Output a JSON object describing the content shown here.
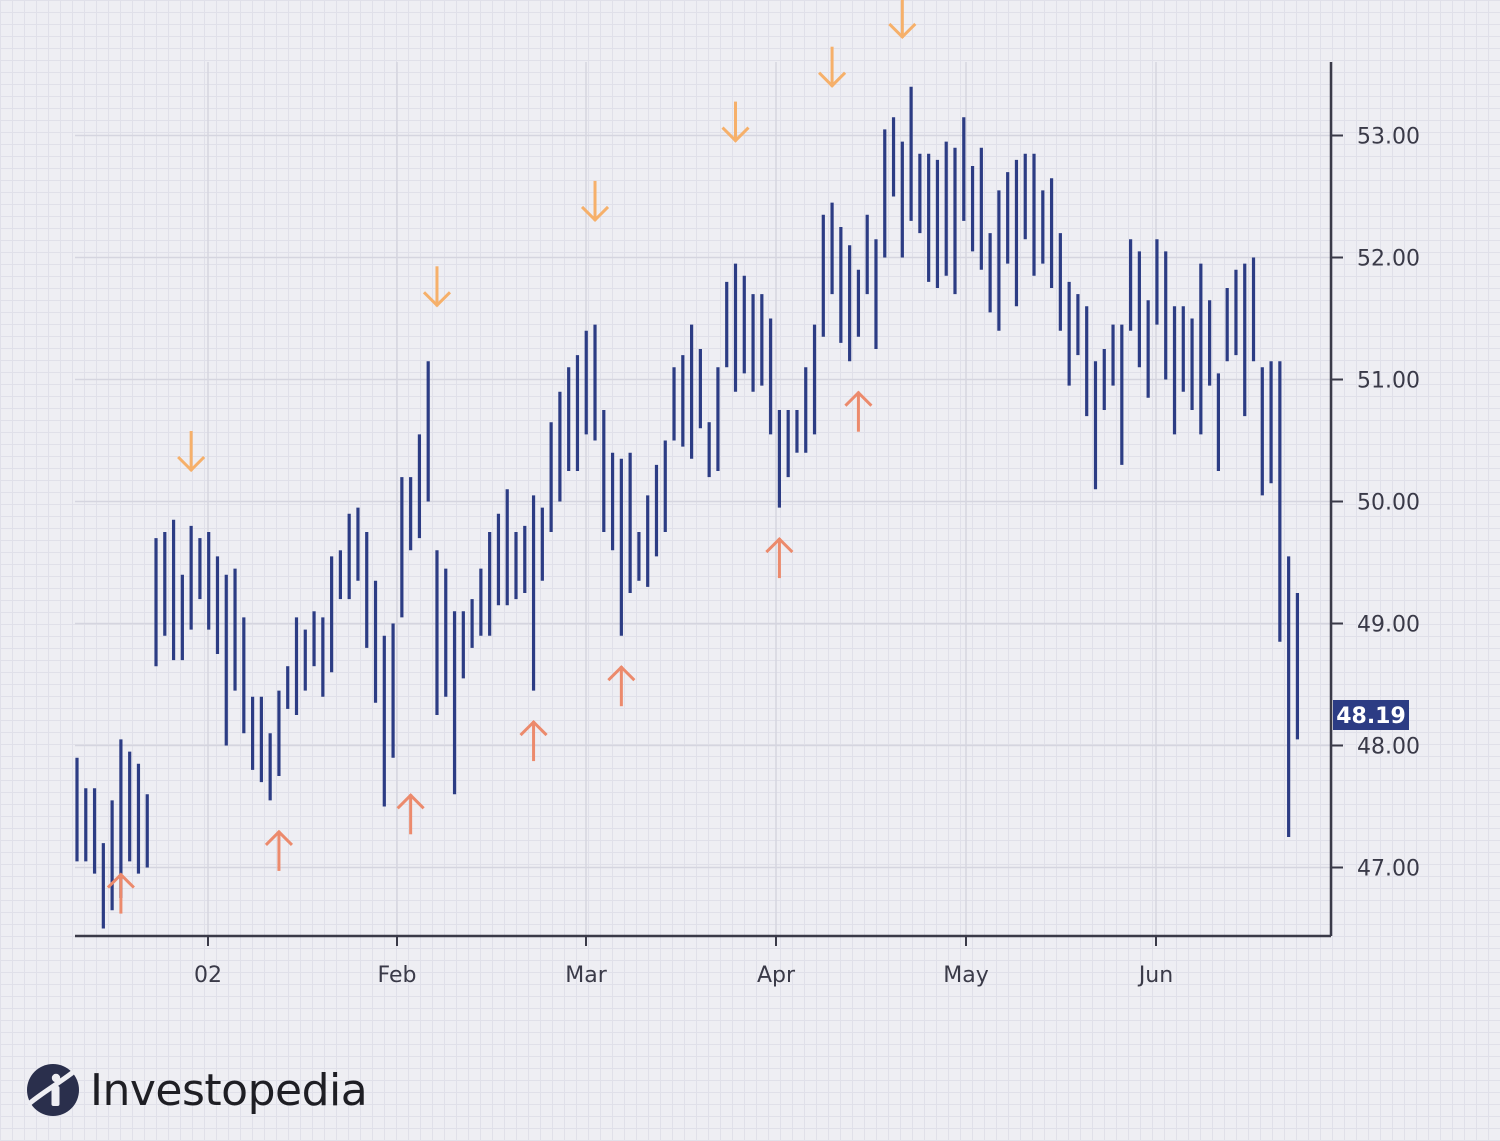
{
  "brand": {
    "name": "Investopedia",
    "logo_icon": "investopedia-logo-icon"
  },
  "colors": {
    "bar": "#2c3c84",
    "buy_arrow": "#ec8a6c",
    "sell_arrow": "#f6b06a",
    "price_tag_bg": "#2c3c84",
    "axis": "#3a3a48"
  },
  "chart_data": {
    "type": "ohlc-bar",
    "title": "",
    "xlabel": "",
    "ylabel": "",
    "ylim": [
      46.45,
      53.6
    ],
    "y_ticks": [
      "47.00",
      "48.00",
      "49.00",
      "50.00",
      "51.00",
      "52.00",
      "53.00"
    ],
    "x_ticks": [
      "02",
      "Feb",
      "Mar",
      "Apr",
      "May",
      "Jun"
    ],
    "last_price": "48.19",
    "grid": true,
    "y_axis_position": "right",
    "bars": [
      {
        "hi": 47.9,
        "lo": 47.05
      },
      {
        "hi": 47.65,
        "lo": 47.05
      },
      {
        "hi": 47.65,
        "lo": 46.95
      },
      {
        "hi": 47.2,
        "lo": 46.5
      },
      {
        "hi": 47.55,
        "lo": 46.65
      },
      {
        "hi": 48.05,
        "lo": 46.75
      },
      {
        "hi": 47.95,
        "lo": 47.05
      },
      {
        "hi": 47.85,
        "lo": 46.95
      },
      {
        "hi": 47.6,
        "lo": 47.0
      },
      {
        "hi": 49.7,
        "lo": 48.65
      },
      {
        "hi": 49.75,
        "lo": 48.9
      },
      {
        "hi": 49.85,
        "lo": 48.7
      },
      {
        "hi": 49.4,
        "lo": 48.7
      },
      {
        "hi": 49.8,
        "lo": 48.95
      },
      {
        "hi": 49.7,
        "lo": 49.2
      },
      {
        "hi": 49.75,
        "lo": 48.95
      },
      {
        "hi": 49.55,
        "lo": 48.75
      },
      {
        "hi": 49.4,
        "lo": 48.0
      },
      {
        "hi": 49.45,
        "lo": 48.45
      },
      {
        "hi": 49.05,
        "lo": 48.1
      },
      {
        "hi": 48.4,
        "lo": 47.8
      },
      {
        "hi": 48.4,
        "lo": 47.7
      },
      {
        "hi": 48.1,
        "lo": 47.55
      },
      {
        "hi": 48.45,
        "lo": 47.75
      },
      {
        "hi": 48.65,
        "lo": 48.3
      },
      {
        "hi": 49.05,
        "lo": 48.25
      },
      {
        "hi": 48.95,
        "lo": 48.45
      },
      {
        "hi": 49.1,
        "lo": 48.65
      },
      {
        "hi": 49.05,
        "lo": 48.4
      },
      {
        "hi": 49.55,
        "lo": 48.6
      },
      {
        "hi": 49.6,
        "lo": 49.2
      },
      {
        "hi": 49.9,
        "lo": 49.2
      },
      {
        "hi": 49.95,
        "lo": 49.35
      },
      {
        "hi": 49.75,
        "lo": 48.8
      },
      {
        "hi": 49.35,
        "lo": 48.35
      },
      {
        "hi": 48.9,
        "lo": 47.5
      },
      {
        "hi": 49.0,
        "lo": 47.9
      },
      {
        "hi": 50.2,
        "lo": 49.05
      },
      {
        "hi": 50.2,
        "lo": 49.6
      },
      {
        "hi": 50.55,
        "lo": 49.7
      },
      {
        "hi": 51.15,
        "lo": 50.0
      },
      {
        "hi": 49.6,
        "lo": 48.25
      },
      {
        "hi": 49.45,
        "lo": 48.4
      },
      {
        "hi": 49.1,
        "lo": 47.6
      },
      {
        "hi": 49.1,
        "lo": 48.55
      },
      {
        "hi": 49.2,
        "lo": 48.8
      },
      {
        "hi": 49.45,
        "lo": 48.9
      },
      {
        "hi": 49.75,
        "lo": 48.9
      },
      {
        "hi": 49.9,
        "lo": 49.15
      },
      {
        "hi": 50.1,
        "lo": 49.15
      },
      {
        "hi": 49.75,
        "lo": 49.2
      },
      {
        "hi": 49.8,
        "lo": 49.25
      },
      {
        "hi": 50.05,
        "lo": 48.45
      },
      {
        "hi": 49.95,
        "lo": 49.35
      },
      {
        "hi": 50.65,
        "lo": 49.75
      },
      {
        "hi": 50.9,
        "lo": 50.0
      },
      {
        "hi": 51.1,
        "lo": 50.25
      },
      {
        "hi": 51.2,
        "lo": 50.25
      },
      {
        "hi": 51.4,
        "lo": 50.55
      },
      {
        "hi": 51.45,
        "lo": 50.5
      },
      {
        "hi": 50.75,
        "lo": 49.75
      },
      {
        "hi": 50.4,
        "lo": 49.6
      },
      {
        "hi": 50.35,
        "lo": 48.9
      },
      {
        "hi": 50.4,
        "lo": 49.25
      },
      {
        "hi": 49.75,
        "lo": 49.35
      },
      {
        "hi": 50.05,
        "lo": 49.3
      },
      {
        "hi": 50.3,
        "lo": 49.55
      },
      {
        "hi": 50.5,
        "lo": 49.75
      },
      {
        "hi": 51.1,
        "lo": 50.5
      },
      {
        "hi": 51.2,
        "lo": 50.45
      },
      {
        "hi": 51.45,
        "lo": 50.35
      },
      {
        "hi": 51.25,
        "lo": 50.6
      },
      {
        "hi": 50.65,
        "lo": 50.2
      },
      {
        "hi": 51.1,
        "lo": 50.25
      },
      {
        "hi": 51.8,
        "lo": 51.1
      },
      {
        "hi": 51.95,
        "lo": 50.9
      },
      {
        "hi": 51.85,
        "lo": 51.05
      },
      {
        "hi": 51.7,
        "lo": 50.9
      },
      {
        "hi": 51.7,
        "lo": 50.95
      },
      {
        "hi": 51.5,
        "lo": 50.55
      },
      {
        "hi": 50.75,
        "lo": 49.95
      },
      {
        "hi": 50.75,
        "lo": 50.2
      },
      {
        "hi": 50.75,
        "lo": 50.4
      },
      {
        "hi": 51.1,
        "lo": 50.4
      },
      {
        "hi": 51.45,
        "lo": 50.55
      },
      {
        "hi": 52.35,
        "lo": 51.35
      },
      {
        "hi": 52.45,
        "lo": 51.7
      },
      {
        "hi": 52.25,
        "lo": 51.3
      },
      {
        "hi": 52.1,
        "lo": 51.15
      },
      {
        "hi": 51.9,
        "lo": 51.35
      },
      {
        "hi": 52.35,
        "lo": 51.7
      },
      {
        "hi": 52.15,
        "lo": 51.25
      },
      {
        "hi": 53.05,
        "lo": 52.0
      },
      {
        "hi": 53.15,
        "lo": 52.5
      },
      {
        "hi": 52.95,
        "lo": 52.0
      },
      {
        "hi": 53.4,
        "lo": 52.3
      },
      {
        "hi": 52.85,
        "lo": 52.2
      },
      {
        "hi": 52.85,
        "lo": 51.8
      },
      {
        "hi": 52.8,
        "lo": 51.75
      },
      {
        "hi": 52.95,
        "lo": 51.85
      },
      {
        "hi": 52.9,
        "lo": 51.7
      },
      {
        "hi": 53.15,
        "lo": 52.3
      },
      {
        "hi": 52.75,
        "lo": 52.05
      },
      {
        "hi": 52.9,
        "lo": 51.9
      },
      {
        "hi": 52.2,
        "lo": 51.55
      },
      {
        "hi": 52.55,
        "lo": 51.4
      },
      {
        "hi": 52.7,
        "lo": 51.95
      },
      {
        "hi": 52.8,
        "lo": 51.6
      },
      {
        "hi": 52.85,
        "lo": 52.15
      },
      {
        "hi": 52.85,
        "lo": 51.85
      },
      {
        "hi": 52.55,
        "lo": 51.95
      },
      {
        "hi": 52.65,
        "lo": 51.75
      },
      {
        "hi": 52.2,
        "lo": 51.4
      },
      {
        "hi": 51.8,
        "lo": 50.95
      },
      {
        "hi": 51.7,
        "lo": 51.2
      },
      {
        "hi": 51.6,
        "lo": 50.7
      },
      {
        "hi": 51.15,
        "lo": 50.1
      },
      {
        "hi": 51.25,
        "lo": 50.75
      },
      {
        "hi": 51.45,
        "lo": 50.95
      },
      {
        "hi": 51.45,
        "lo": 50.3
      },
      {
        "hi": 52.15,
        "lo": 51.4
      },
      {
        "hi": 52.05,
        "lo": 51.1
      },
      {
        "hi": 51.65,
        "lo": 50.85
      },
      {
        "hi": 52.15,
        "lo": 51.45
      },
      {
        "hi": 52.05,
        "lo": 51.0
      },
      {
        "hi": 51.6,
        "lo": 50.55
      },
      {
        "hi": 51.6,
        "lo": 50.9
      },
      {
        "hi": 51.5,
        "lo": 50.75
      },
      {
        "hi": 51.95,
        "lo": 50.55
      },
      {
        "hi": 51.65,
        "lo": 50.95
      },
      {
        "hi": 51.05,
        "lo": 50.25
      },
      {
        "hi": 51.75,
        "lo": 51.15
      },
      {
        "hi": 51.9,
        "lo": 51.2
      },
      {
        "hi": 51.95,
        "lo": 50.7
      },
      {
        "hi": 52.0,
        "lo": 51.15
      },
      {
        "hi": 51.1,
        "lo": 50.05
      },
      {
        "hi": 51.15,
        "lo": 50.15
      },
      {
        "hi": 51.15,
        "lo": 48.85
      },
      {
        "hi": 49.55,
        "lo": 47.25
      },
      {
        "hi": 49.25,
        "lo": 48.05
      }
    ],
    "annotations": [
      {
        "type": "buy",
        "bar": 5,
        "price": 46.95
      },
      {
        "type": "buy",
        "bar": 23,
        "price": 47.3
      },
      {
        "type": "buy",
        "bar": 38,
        "price": 47.6
      },
      {
        "type": "buy",
        "bar": 52,
        "price": 48.2
      },
      {
        "type": "buy",
        "bar": 62,
        "price": 48.65
      },
      {
        "type": "buy",
        "bar": 80,
        "price": 49.7
      },
      {
        "type": "buy",
        "bar": 89,
        "price": 50.9
      },
      {
        "type": "sell",
        "bar": 13,
        "price": 50.25
      },
      {
        "type": "sell",
        "bar": 41,
        "price": 51.6
      },
      {
        "type": "sell",
        "bar": 59,
        "price": 52.3
      },
      {
        "type": "sell",
        "bar": 75,
        "price": 52.95
      },
      {
        "type": "sell",
        "bar": 86,
        "price": 53.4
      },
      {
        "type": "sell",
        "bar": 94,
        "price": 53.8
      }
    ]
  }
}
